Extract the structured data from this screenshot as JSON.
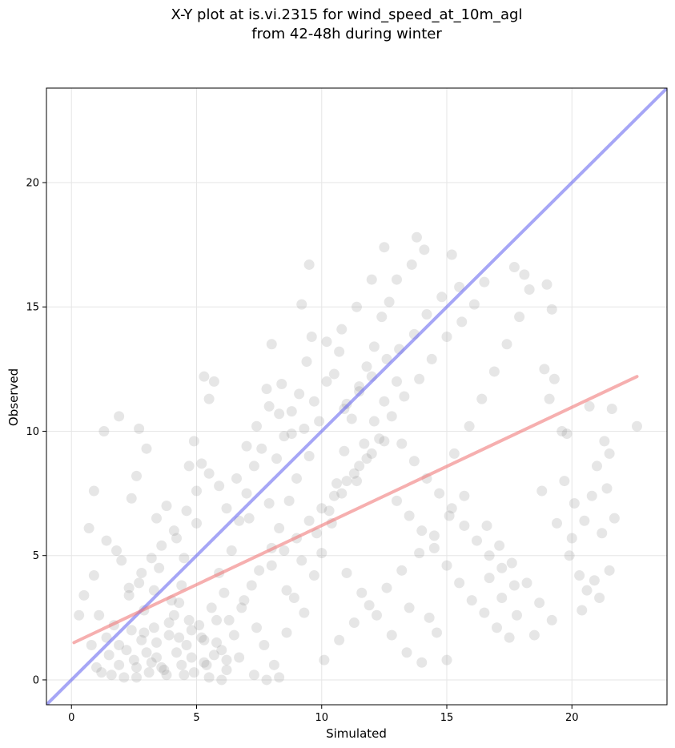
{
  "chart_data": {
    "type": "scatter",
    "title_lines": [
      "X-Y plot at is.vi.2315 for wind_speed_at_10m_agl",
      "from 42-48h during winter"
    ],
    "xlabel": "Simulated",
    "ylabel": "Observed",
    "xlim": [
      -1.0,
      23.8
    ],
    "ylim": [
      -1.0,
      23.8
    ],
    "x_ticks": [
      0,
      5,
      10,
      15,
      20
    ],
    "y_ticks": [
      0,
      5,
      10,
      15,
      20
    ],
    "grid": true,
    "colors": {
      "points": "#808080",
      "one_to_one_line": "#6a6af0",
      "fit_line": "#f07a7a",
      "grid": "#e6e6e6",
      "axes": "#000000"
    },
    "reference_lines": [
      {
        "name": "1:1",
        "color": "#6a6af0",
        "points": [
          [
            -1.0,
            -1.0
          ],
          [
            23.8,
            23.8
          ]
        ]
      },
      {
        "name": "fit",
        "color": "#f07a7a",
        "points": [
          [
            0.1,
            1.5
          ],
          [
            22.6,
            12.2
          ]
        ]
      }
    ],
    "series": [
      {
        "marker": "circle",
        "points": [
          [
            2.5,
            0.8
          ],
          [
            3.1,
            0.3
          ],
          [
            4.2,
            1.1
          ],
          [
            3.6,
            0.5
          ],
          [
            2.8,
            1.6
          ],
          [
            4.8,
            0.9
          ],
          [
            1.9,
            0.6
          ],
          [
            3.3,
            2.1
          ],
          [
            4.5,
            0.2
          ],
          [
            2.2,
            1.2
          ],
          [
            5.3,
            0.7
          ],
          [
            3.9,
            1.8
          ],
          [
            2.6,
            0.1
          ],
          [
            4.1,
            2.6
          ],
          [
            1.5,
            1.0
          ],
          [
            5.8,
            1.5
          ],
          [
            3.4,
            0.9
          ],
          [
            4.6,
            1.4
          ],
          [
            2.9,
            2.8
          ],
          [
            3.7,
            0.4
          ],
          [
            0.8,
            1.4
          ],
          [
            1.2,
            0.3
          ],
          [
            5.1,
            2.2
          ],
          [
            6.2,
            0.8
          ],
          [
            2.3,
            3.4
          ],
          [
            3.0,
            1.1
          ],
          [
            4.3,
            3.1
          ],
          [
            5.6,
            2.9
          ],
          [
            1.7,
            2.2
          ],
          [
            6.5,
            1.8
          ],
          [
            0.5,
            3.4
          ],
          [
            0.9,
            4.2
          ],
          [
            1.4,
            5.6
          ],
          [
            2.0,
            4.8
          ],
          [
            0.7,
            6.1
          ],
          [
            1.1,
            2.6
          ],
          [
            2.7,
            3.9
          ],
          [
            3.5,
            4.5
          ],
          [
            4.4,
            3.8
          ],
          [
            1.8,
            5.2
          ],
          [
            0.3,
            2.6
          ],
          [
            2.4,
            7.3
          ],
          [
            1.3,
            10.0
          ],
          [
            1.9,
            10.6
          ],
          [
            2.7,
            10.1
          ],
          [
            3.0,
            9.3
          ],
          [
            0.9,
            7.6
          ],
          [
            2.6,
            8.2
          ],
          [
            3.4,
            6.5
          ],
          [
            3.8,
            7.0
          ],
          [
            4.2,
            5.7
          ],
          [
            5.0,
            6.3
          ],
          [
            4.7,
            8.6
          ],
          [
            4.9,
            9.6
          ],
          [
            5.3,
            12.2
          ],
          [
            5.5,
            11.3
          ],
          [
            5.7,
            12.0
          ],
          [
            5.2,
            8.7
          ],
          [
            4.5,
            4.9
          ],
          [
            5.9,
            4.3
          ],
          [
            6.1,
            3.5
          ],
          [
            6.4,
            5.2
          ],
          [
            6.7,
            6.4
          ],
          [
            7.0,
            7.5
          ],
          [
            7.3,
            8.6
          ],
          [
            7.6,
            9.3
          ],
          [
            7.9,
            7.1
          ],
          [
            8.2,
            8.9
          ],
          [
            8.5,
            9.8
          ],
          [
            8.8,
            10.8
          ],
          [
            9.1,
            11.5
          ],
          [
            9.4,
            12.8
          ],
          [
            9.6,
            13.8
          ],
          [
            9.2,
            15.1
          ],
          [
            9.5,
            16.7
          ],
          [
            7.8,
            11.7
          ],
          [
            8.4,
            11.9
          ],
          [
            8.0,
            13.5
          ],
          [
            7.1,
            6.5
          ],
          [
            6.9,
            3.2
          ],
          [
            7.4,
            2.1
          ],
          [
            7.7,
            1.4
          ],
          [
            8.1,
            0.6
          ],
          [
            8.6,
            1.9
          ],
          [
            8.9,
            3.3
          ],
          [
            9.3,
            2.7
          ],
          [
            9.7,
            4.2
          ],
          [
            10.0,
            5.1
          ],
          [
            10.3,
            6.8
          ],
          [
            10.6,
            7.9
          ],
          [
            10.9,
            9.2
          ],
          [
            11.2,
            10.5
          ],
          [
            11.5,
            11.8
          ],
          [
            11.8,
            12.6
          ],
          [
            12.1,
            13.4
          ],
          [
            12.4,
            14.6
          ],
          [
            12.7,
            15.2
          ],
          [
            13.0,
            16.1
          ],
          [
            12.5,
            17.4
          ],
          [
            13.8,
            17.8
          ],
          [
            14.1,
            17.3
          ],
          [
            13.6,
            16.7
          ],
          [
            12.0,
            16.1
          ],
          [
            11.4,
            15.0
          ],
          [
            10.8,
            14.1
          ],
          [
            10.2,
            13.6
          ],
          [
            10.5,
            12.3
          ],
          [
            11.0,
            11.1
          ],
          [
            9.9,
            10.4
          ],
          [
            9.5,
            9.0
          ],
          [
            9.0,
            8.1
          ],
          [
            8.7,
            7.2
          ],
          [
            8.3,
            6.1
          ],
          [
            8.0,
            5.3
          ],
          [
            7.5,
            4.4
          ],
          [
            7.2,
            3.8
          ],
          [
            6.8,
            2.9
          ],
          [
            6.3,
            2.4
          ],
          [
            6.0,
            1.2
          ],
          [
            5.4,
            0.6
          ],
          [
            10.1,
            0.8
          ],
          [
            10.7,
            1.6
          ],
          [
            11.3,
            2.3
          ],
          [
            11.9,
            3.0
          ],
          [
            12.6,
            3.7
          ],
          [
            13.2,
            4.4
          ],
          [
            13.9,
            5.1
          ],
          [
            14.5,
            5.8
          ],
          [
            15.1,
            6.6
          ],
          [
            15.7,
            7.4
          ],
          [
            12.8,
            1.8
          ],
          [
            13.4,
            1.1
          ],
          [
            14.0,
            0.7
          ],
          [
            14.6,
            1.9
          ],
          [
            15.0,
            0.8
          ],
          [
            14.3,
            2.5
          ],
          [
            13.5,
            2.9
          ],
          [
            12.2,
            2.6
          ],
          [
            11.6,
            3.5
          ],
          [
            11.0,
            4.3
          ],
          [
            15.3,
            9.1
          ],
          [
            15.9,
            10.2
          ],
          [
            16.4,
            11.3
          ],
          [
            16.9,
            12.4
          ],
          [
            17.4,
            13.5
          ],
          [
            17.9,
            14.6
          ],
          [
            18.3,
            15.7
          ],
          [
            17.7,
            16.6
          ],
          [
            18.1,
            16.3
          ],
          [
            16.5,
            16.0
          ],
          [
            16.1,
            15.1
          ],
          [
            15.6,
            14.4
          ],
          [
            15.0,
            13.8
          ],
          [
            14.4,
            12.9
          ],
          [
            13.9,
            12.1
          ],
          [
            13.3,
            11.4
          ],
          [
            12.8,
            10.6
          ],
          [
            12.3,
            9.7
          ],
          [
            11.8,
            8.9
          ],
          [
            11.4,
            8.0
          ],
          [
            16.6,
            6.2
          ],
          [
            17.1,
            5.4
          ],
          [
            17.6,
            4.7
          ],
          [
            18.2,
            3.9
          ],
          [
            18.7,
            3.1
          ],
          [
            19.2,
            2.4
          ],
          [
            18.5,
            1.8
          ],
          [
            17.8,
            2.6
          ],
          [
            17.2,
            3.3
          ],
          [
            16.7,
            4.1
          ],
          [
            19.0,
            15.9
          ],
          [
            19.2,
            14.9
          ],
          [
            18.9,
            12.5
          ],
          [
            19.3,
            12.1
          ],
          [
            19.1,
            11.3
          ],
          [
            19.6,
            10.0
          ],
          [
            19.8,
            9.9
          ],
          [
            19.7,
            8.0
          ],
          [
            20.1,
            7.1
          ],
          [
            20.5,
            6.4
          ],
          [
            20.0,
            5.7
          ],
          [
            20.3,
            4.2
          ],
          [
            20.9,
            4.0
          ],
          [
            20.6,
            3.6
          ],
          [
            20.4,
            2.8
          ],
          [
            21.1,
            3.3
          ],
          [
            20.8,
            7.4
          ],
          [
            21.3,
            9.6
          ],
          [
            21.5,
            9.1
          ],
          [
            21.6,
            10.9
          ],
          [
            21.0,
            8.6
          ],
          [
            21.4,
            7.7
          ],
          [
            21.7,
            6.5
          ],
          [
            21.5,
            4.4
          ],
          [
            21.2,
            5.9
          ],
          [
            22.6,
            10.2
          ],
          [
            20.7,
            11.0
          ],
          [
            19.4,
            6.3
          ],
          [
            19.9,
            5.0
          ],
          [
            18.8,
            7.6
          ],
          [
            15.2,
            17.1
          ],
          [
            15.5,
            15.8
          ],
          [
            14.8,
            15.4
          ],
          [
            14.2,
            14.7
          ],
          [
            13.7,
            13.9
          ],
          [
            13.1,
            13.3
          ],
          [
            12.6,
            12.9
          ],
          [
            12.0,
            12.2
          ],
          [
            11.5,
            11.6
          ],
          [
            10.9,
            10.9
          ],
          [
            8.6,
            3.6
          ],
          [
            9.2,
            4.8
          ],
          [
            9.8,
            5.9
          ],
          [
            10.4,
            6.3
          ],
          [
            10.8,
            7.5
          ],
          [
            11.3,
            8.3
          ],
          [
            11.7,
            9.5
          ],
          [
            12.1,
            10.4
          ],
          [
            12.5,
            11.2
          ],
          [
            13.0,
            12.0
          ],
          [
            6.6,
            8.1
          ],
          [
            7.0,
            9.4
          ],
          [
            7.4,
            10.2
          ],
          [
            7.9,
            11.0
          ],
          [
            8.3,
            10.7
          ],
          [
            8.8,
            9.9
          ],
          [
            9.3,
            10.1
          ],
          [
            9.7,
            11.2
          ],
          [
            10.2,
            12.0
          ],
          [
            10.7,
            13.2
          ],
          [
            6.2,
            6.9
          ],
          [
            5.9,
            7.8
          ],
          [
            5.5,
            8.3
          ],
          [
            5.0,
            7.6
          ],
          [
            4.6,
            6.8
          ],
          [
            4.1,
            6.0
          ],
          [
            3.6,
            5.4
          ],
          [
            3.2,
            4.9
          ],
          [
            2.8,
            4.3
          ],
          [
            2.3,
            3.7
          ],
          [
            7.3,
            0.2
          ],
          [
            7.8,
            0.0
          ],
          [
            8.3,
            0.1
          ],
          [
            6.7,
            0.9
          ],
          [
            6.2,
            0.4
          ],
          [
            5.7,
            1.0
          ],
          [
            5.2,
            1.7
          ],
          [
            4.7,
            2.4
          ],
          [
            4.0,
            3.2
          ],
          [
            3.3,
            3.6
          ],
          [
            1.0,
            0.5
          ],
          [
            1.6,
            0.2
          ],
          [
            2.1,
            0.1
          ],
          [
            2.6,
            0.5
          ],
          [
            3.2,
            0.7
          ],
          [
            3.8,
            0.2
          ],
          [
            4.4,
            0.6
          ],
          [
            4.9,
            0.3
          ],
          [
            5.5,
            0.1
          ],
          [
            6.0,
            0.0
          ],
          [
            1.4,
            1.7
          ],
          [
            1.9,
            1.4
          ],
          [
            2.4,
            2.0
          ],
          [
            2.9,
            1.9
          ],
          [
            3.4,
            1.5
          ],
          [
            3.9,
            2.3
          ],
          [
            4.3,
            1.7
          ],
          [
            4.8,
            2.0
          ],
          [
            5.3,
            1.6
          ],
          [
            5.8,
            2.4
          ],
          [
            8.0,
            4.6
          ],
          [
            8.5,
            5.2
          ],
          [
            9.0,
            5.7
          ],
          [
            9.5,
            6.4
          ],
          [
            10.0,
            6.9
          ],
          [
            10.5,
            7.4
          ],
          [
            11.0,
            8.0
          ],
          [
            11.5,
            8.6
          ],
          [
            12.0,
            9.1
          ],
          [
            12.5,
            9.6
          ],
          [
            13.0,
            7.2
          ],
          [
            13.5,
            6.6
          ],
          [
            14.0,
            6.0
          ],
          [
            14.5,
            5.3
          ],
          [
            15.0,
            4.6
          ],
          [
            15.5,
            3.9
          ],
          [
            16.0,
            3.2
          ],
          [
            16.5,
            2.7
          ],
          [
            17.0,
            2.1
          ],
          [
            17.5,
            1.7
          ],
          [
            13.2,
            9.5
          ],
          [
            13.7,
            8.8
          ],
          [
            14.2,
            8.1
          ],
          [
            14.7,
            7.5
          ],
          [
            15.2,
            6.9
          ],
          [
            15.7,
            6.2
          ],
          [
            16.2,
            5.6
          ],
          [
            16.7,
            5.0
          ],
          [
            17.2,
            4.5
          ],
          [
            17.7,
            3.8
          ]
        ]
      }
    ]
  }
}
